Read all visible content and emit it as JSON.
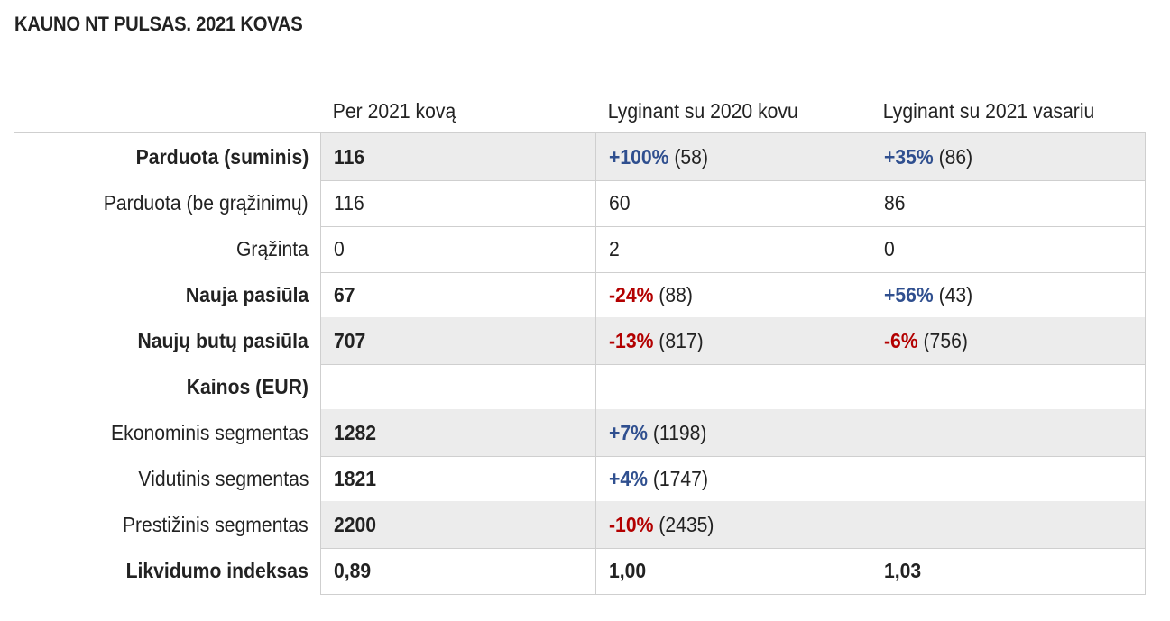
{
  "title": "KAUNO NT PULSAS. 2021 KOVAS",
  "colors": {
    "positive": "#2f4f8f",
    "negative": "#b30000",
    "row_shade": "#ececec",
    "grid": "#cfcfcf"
  },
  "header": {
    "col1": "Per 2021 kovą",
    "col2": "Lyginant su 2020 kovu",
    "col3": "Lyginant su 2021 vasariu"
  },
  "rows": [
    {
      "label": "Parduota (suminis)",
      "c1": "116",
      "c2": {
        "pct": "+100%",
        "prev": " (58)"
      },
      "c3": {
        "pct": "+35%",
        "prev": " (86)"
      }
    },
    {
      "label": "Parduota (be grąžinimų)",
      "c1": "116",
      "c2": {
        "pct": "",
        "prev": "60"
      },
      "c3": {
        "pct": "",
        "prev": "86"
      }
    },
    {
      "label": "Grąžinta",
      "c1": "0",
      "c2": {
        "pct": "",
        "prev": "2"
      },
      "c3": {
        "pct": "",
        "prev": "0"
      }
    },
    {
      "label": "Nauja pasiūla",
      "c1": "67",
      "c2": {
        "pct": "-24%",
        "prev": " (88)"
      },
      "c3": {
        "pct": "+56%",
        "prev": " (43)"
      }
    },
    {
      "label": "Naujų butų pasiūla",
      "c1": "707",
      "c2": {
        "pct": "-13%",
        "prev": " (817)"
      },
      "c3": {
        "pct": "-6%",
        "prev": " (756)"
      }
    },
    {
      "label": "Kainos (EUR)",
      "c1": "",
      "c2": {
        "pct": "",
        "prev": ""
      },
      "c3": {
        "pct": "",
        "prev": ""
      }
    },
    {
      "label": "Ekonominis segmentas",
      "c1": "1282",
      "c2": {
        "pct": "+7%",
        "prev": " (1198)"
      },
      "c3": {
        "pct": "",
        "prev": ""
      }
    },
    {
      "label": "Vidutinis segmentas",
      "c1": "1821",
      "c2": {
        "pct": "+4%",
        "prev": " (1747)"
      },
      "c3": {
        "pct": "",
        "prev": ""
      }
    },
    {
      "label": "Prestižinis segmentas",
      "c1": "2200",
      "c2": {
        "pct": "-10%",
        "prev": " (2435)"
      },
      "c3": {
        "pct": "",
        "prev": ""
      }
    },
    {
      "label": "Likvidumo indeksas",
      "c1": "0,89",
      "c2": {
        "pct": "",
        "prev": "1,00"
      },
      "c3": {
        "pct": "",
        "prev": "1,03"
      }
    }
  ]
}
